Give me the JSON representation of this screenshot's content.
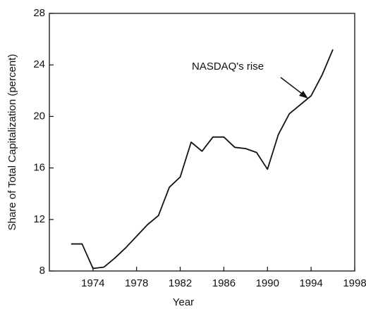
{
  "chart_data": {
    "type": "line",
    "x_label": "Year",
    "y_label": "Share of Total Capitalization (percent)",
    "annotation": "NASDAQ's rise",
    "x": [
      1972,
      1973,
      1974,
      1975,
      1976,
      1977,
      1978,
      1979,
      1980,
      1981,
      1982,
      1983,
      1984,
      1985,
      1986,
      1987,
      1988,
      1989,
      1990,
      1991,
      1992,
      1993,
      1994,
      1995,
      1996
    ],
    "series": [
      {
        "color": "#111111",
        "values": [
          10.1,
          10.1,
          8.2,
          8.3,
          9.0,
          9.8,
          10.7,
          11.6,
          12.3,
          14.5,
          15.3,
          18.0,
          17.3,
          18.4,
          18.4,
          17.6,
          17.5,
          17.2,
          15.9,
          18.6,
          20.2,
          20.9,
          21.6,
          23.2,
          25.2
        ]
      }
    ],
    "xlim": [
      1970,
      1998
    ],
    "xticks": [
      1974,
      1978,
      1982,
      1986,
      1990,
      1994,
      1998
    ],
    "ylim": [
      8,
      28
    ],
    "yticks": [
      8,
      12,
      16,
      20,
      24,
      28
    ],
    "grid": false
  }
}
